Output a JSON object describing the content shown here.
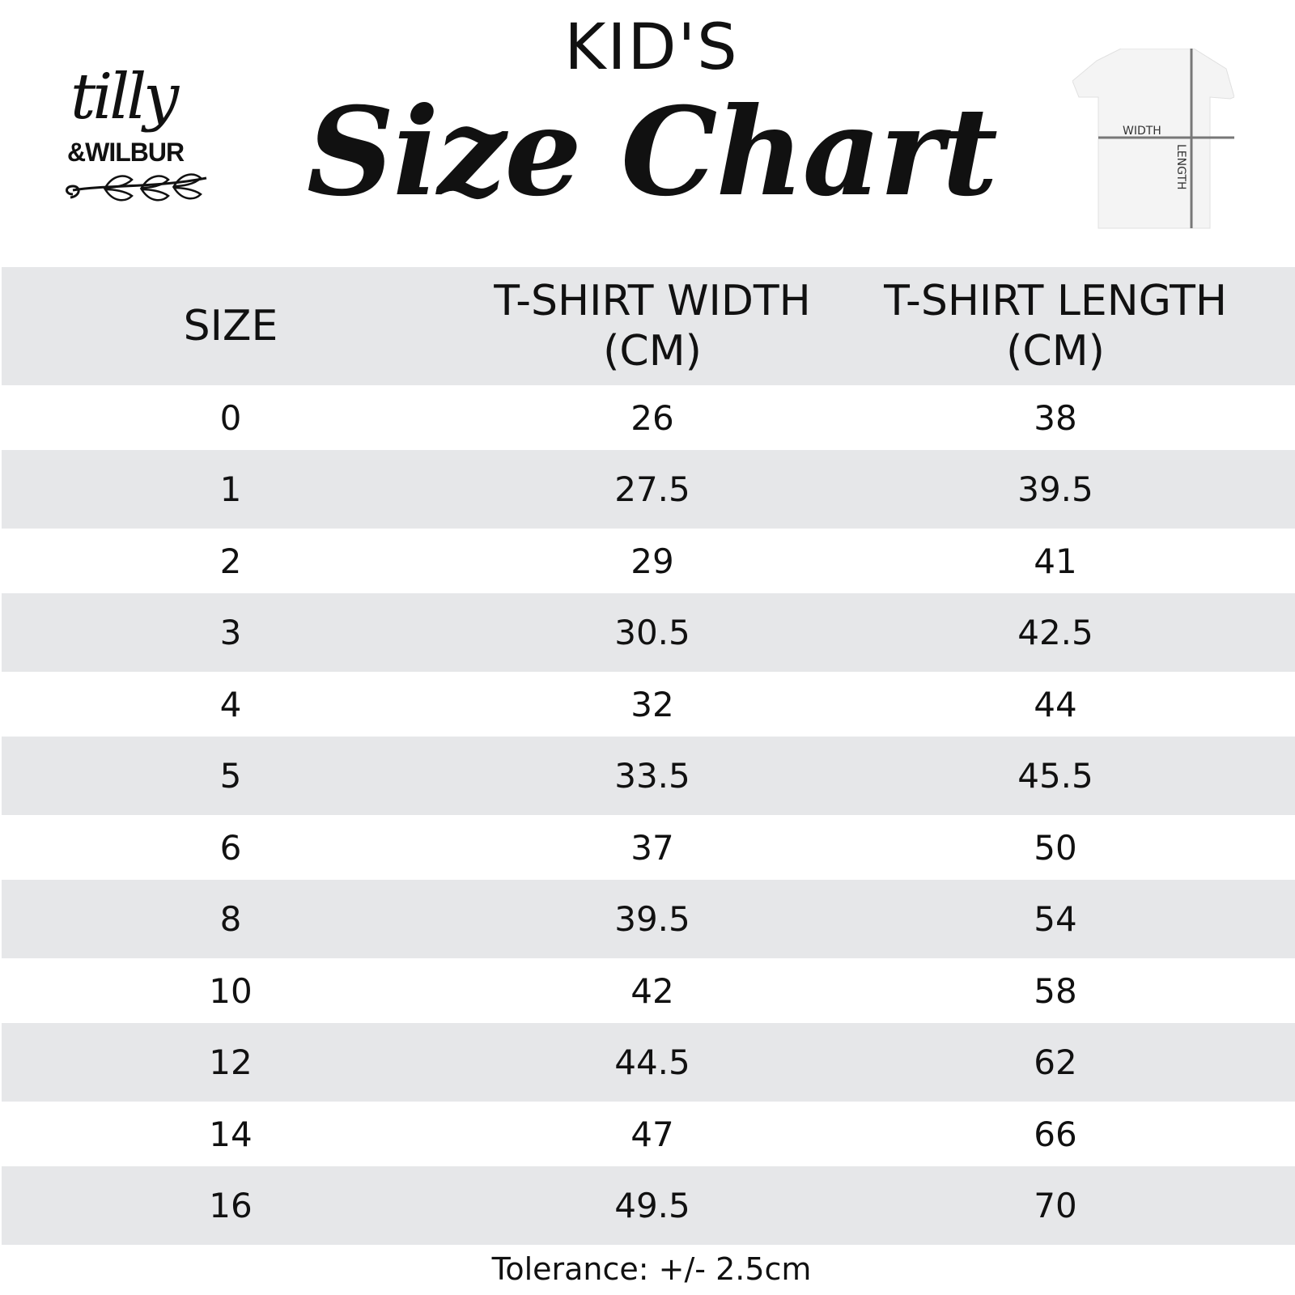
{
  "header": {
    "kicker": "KID'S",
    "title": "Size Chart"
  },
  "logo": {
    "line1": "tilly",
    "line2": "&WILBUR"
  },
  "diagram": {
    "width_label": "WIDTH",
    "length_label": "LENGTH"
  },
  "table": {
    "headers": [
      "SIZE",
      "T-SHIRT WIDTH (CM)",
      "T-SHIRT LENGTH (CM)"
    ],
    "rows": [
      [
        "0",
        "26",
        "38"
      ],
      [
        "1",
        "27.5",
        "39.5"
      ],
      [
        "2",
        "29",
        "41"
      ],
      [
        "3",
        "30.5",
        "42.5"
      ],
      [
        "4",
        "32",
        "44"
      ],
      [
        "5",
        "33.5",
        "45.5"
      ],
      [
        "6",
        "37",
        "50"
      ],
      [
        "8",
        "39.5",
        "54"
      ],
      [
        "10",
        "42",
        "58"
      ],
      [
        "12",
        "44.5",
        "62"
      ],
      [
        "14",
        "47",
        "66"
      ],
      [
        "16",
        "49.5",
        "70"
      ]
    ]
  },
  "footer": {
    "tolerance": "Tolerance: +/- 2.5cm"
  },
  "colors": {
    "row_alt": "#e6e7e9",
    "text": "#111111"
  }
}
